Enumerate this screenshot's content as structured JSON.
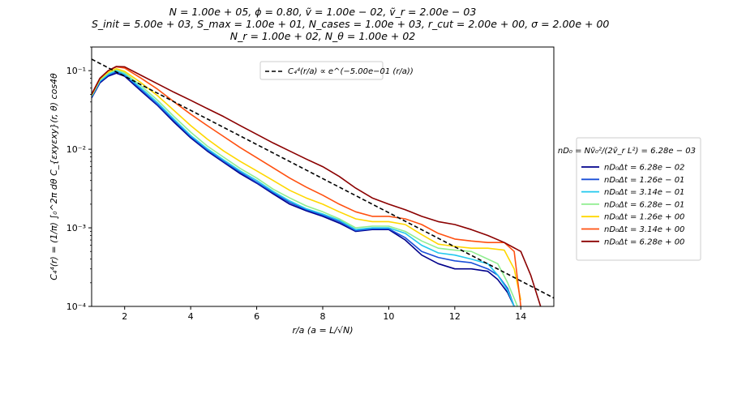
{
  "title_lines": [
    "N = 1.00e + 05, ϕ = 0.80, ṽ = 1.00e − 02, ṽ_r = 2.00e − 03",
    "S_init = 5.00e + 03, S_max = 1.00e + 01, N_cases = 1.00e + 03, r_cut = 2.00e + 00, σ = 2.00e + 00",
    "N_r = 1.00e + 02, N_θ = 1.00e + 02"
  ],
  "chart_data": {
    "type": "line",
    "xlabel": "r/a (a = L/√N)",
    "ylabel": "C₄⁴(r) = (1/π) ∫₀^2π dθ C_{εxyεxy}(r, θ) cos4θ",
    "xlim": [
      1,
      15
    ],
    "ylim": [
      0.0001,
      0.2
    ],
    "yscale": "log",
    "xticks": [
      2,
      4,
      6,
      8,
      10,
      12,
      14
    ],
    "xtick_labels": [
      "2",
      "4",
      "6",
      "8",
      "10",
      "12",
      "14"
    ],
    "yticks": [
      0.0001,
      0.001,
      0.01,
      0.1
    ],
    "ytick_labels": [
      "10⁻⁴",
      "10⁻³",
      "10⁻²",
      "10⁻¹"
    ],
    "fit_line": {
      "label": "C₄⁴(r/a) ∝ e^(−5.00e−01 (r/a))",
      "x": [
        1,
        15
      ],
      "y": [
        0.14,
        0.000128
      ],
      "color": "#000000",
      "style": "dashed"
    },
    "legend_header": "nD₀ = Nṽ₀²/(2ṽ_r L²) = 6.28e − 03",
    "series": [
      {
        "name": "nD₀Δt = 6.28e − 02",
        "color": "#00008b",
        "x": [
          1,
          1.25,
          1.5,
          1.75,
          2,
          2.5,
          3,
          3.5,
          4,
          4.5,
          5,
          5.5,
          6,
          6.5,
          7,
          7.5,
          8,
          8.5,
          9,
          9.5,
          10,
          10.5,
          11,
          11.5,
          12,
          12.5,
          13,
          13.3,
          13.6,
          13.8
        ],
        "y": [
          0.045,
          0.07,
          0.085,
          0.093,
          0.085,
          0.055,
          0.036,
          0.022,
          0.014,
          0.0095,
          0.0068,
          0.0049,
          0.0037,
          0.0027,
          0.002,
          0.00165,
          0.0014,
          0.00115,
          0.0009,
          0.00095,
          0.00095,
          0.0007,
          0.00045,
          0.00035,
          0.0003,
          0.0003,
          0.00028,
          0.00022,
          0.00015,
          0.0001
        ]
      },
      {
        "name": "nD₀Δt = 1.26e − 01",
        "color": "#1a4fd8",
        "x": [
          1,
          1.25,
          1.5,
          1.75,
          2,
          2.5,
          3,
          3.5,
          4,
          4.5,
          5,
          5.5,
          6,
          6.5,
          7,
          7.5,
          8,
          8.5,
          9,
          9.5,
          10,
          10.5,
          11,
          11.5,
          12,
          12.5,
          13,
          13.3,
          13.6,
          13.8
        ],
        "y": [
          0.046,
          0.072,
          0.088,
          0.096,
          0.088,
          0.057,
          0.037,
          0.023,
          0.0145,
          0.0098,
          0.007,
          0.0051,
          0.0038,
          0.0028,
          0.0021,
          0.0017,
          0.00145,
          0.0012,
          0.00092,
          0.00097,
          0.00097,
          0.00075,
          0.0005,
          0.00042,
          0.00038,
          0.00036,
          0.0003,
          0.00025,
          0.00017,
          0.0001
        ]
      },
      {
        "name": "nD₀Δt = 3.14e − 01",
        "color": "#22c8ee",
        "x": [
          1,
          1.25,
          1.5,
          1.75,
          2,
          2.5,
          3,
          3.5,
          4,
          4.5,
          5,
          5.5,
          6,
          6.5,
          7,
          7.5,
          8,
          8.5,
          9,
          9.5,
          10,
          10.5,
          11,
          11.5,
          12,
          12.5,
          13,
          13.3,
          13.6,
          13.8
        ],
        "y": [
          0.047,
          0.074,
          0.09,
          0.1,
          0.09,
          0.06,
          0.039,
          0.024,
          0.015,
          0.0102,
          0.0073,
          0.0053,
          0.004,
          0.0029,
          0.0022,
          0.00175,
          0.0015,
          0.00125,
          0.00095,
          0.001,
          0.001,
          0.00085,
          0.0006,
          0.00048,
          0.00045,
          0.0004,
          0.00035,
          0.00025,
          0.00016,
          0.0001
        ]
      },
      {
        "name": "nD₀Δt = 6.28e − 01",
        "color": "#90ee90",
        "x": [
          1,
          1.25,
          1.5,
          1.75,
          2,
          2.5,
          3,
          3.5,
          4,
          4.5,
          5,
          5.5,
          6,
          6.5,
          7,
          7.5,
          8,
          8.5,
          9,
          9.5,
          10,
          10.5,
          11,
          11.5,
          12,
          12.5,
          13,
          13.3,
          13.6,
          13.9
        ],
        "y": [
          0.048,
          0.076,
          0.093,
          0.103,
          0.094,
          0.064,
          0.042,
          0.026,
          0.0165,
          0.011,
          0.0079,
          0.0057,
          0.0043,
          0.0031,
          0.0024,
          0.0019,
          0.0016,
          0.0013,
          0.001,
          0.00105,
          0.00105,
          0.0009,
          0.00068,
          0.00055,
          0.00052,
          0.0005,
          0.0004,
          0.00035,
          0.0002,
          0.0001
        ]
      },
      {
        "name": "nD₀Δt = 1.26e + 00",
        "color": "#ffd700",
        "x": [
          1,
          1.25,
          1.5,
          1.75,
          2,
          2.5,
          3,
          3.5,
          4,
          4.5,
          5,
          5.5,
          6,
          6.5,
          7,
          7.5,
          8,
          8.5,
          9,
          9.5,
          10,
          10.5,
          11,
          11.5,
          12,
          12.5,
          13,
          13.5,
          13.8,
          14
        ],
        "y": [
          0.049,
          0.078,
          0.096,
          0.106,
          0.098,
          0.07,
          0.048,
          0.031,
          0.02,
          0.0135,
          0.0095,
          0.007,
          0.0053,
          0.004,
          0.003,
          0.0024,
          0.002,
          0.0016,
          0.0013,
          0.0012,
          0.0012,
          0.0011,
          0.00082,
          0.00062,
          0.00058,
          0.00055,
          0.00055,
          0.00052,
          0.0003,
          0.00012
        ]
      },
      {
        "name": "nD₀Δt = 3.14e + 00",
        "color": "#ff5010",
        "x": [
          1,
          1.25,
          1.5,
          1.75,
          2,
          2.5,
          3,
          3.5,
          4,
          4.5,
          5,
          5.5,
          6,
          6.5,
          7,
          7.5,
          8,
          8.5,
          9,
          9.5,
          10,
          10.5,
          11,
          11.5,
          12,
          12.5,
          13,
          13.5,
          13.8,
          14
        ],
        "y": [
          0.05,
          0.08,
          0.1,
          0.112,
          0.108,
          0.08,
          0.058,
          0.04,
          0.028,
          0.02,
          0.0145,
          0.0105,
          0.0078,
          0.0058,
          0.0043,
          0.0033,
          0.0026,
          0.002,
          0.0016,
          0.0014,
          0.0014,
          0.0013,
          0.0011,
          0.00085,
          0.00072,
          0.00068,
          0.00065,
          0.00065,
          0.0005,
          0.0001
        ]
      },
      {
        "name": "nD₀Δt = 6.28e + 00",
        "color": "#8b0000",
        "x": [
          1,
          1.25,
          1.5,
          1.75,
          2,
          2.5,
          3,
          3.5,
          4,
          4.5,
          5,
          5.5,
          6,
          6.5,
          7,
          7.5,
          8,
          8.5,
          9,
          9.5,
          10,
          10.5,
          11,
          11.5,
          12,
          12.5,
          13,
          13.5,
          14,
          14.3,
          14.6
        ],
        "y": [
          0.05,
          0.08,
          0.1,
          0.113,
          0.112,
          0.087,
          0.068,
          0.053,
          0.042,
          0.033,
          0.026,
          0.02,
          0.0155,
          0.012,
          0.0095,
          0.0075,
          0.006,
          0.0045,
          0.0032,
          0.0024,
          0.002,
          0.0017,
          0.0014,
          0.0012,
          0.0011,
          0.00095,
          0.0008,
          0.00065,
          0.0005,
          0.00025,
          0.0001
        ]
      }
    ]
  }
}
